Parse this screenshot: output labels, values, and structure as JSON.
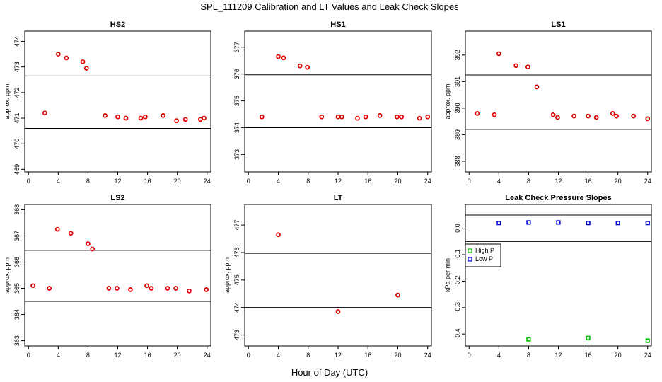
{
  "title": "SPL_111209  Calibration and LT Values and Leak Check Slopes",
  "xlabel": "Hour of Day (UTC)",
  "colors": {
    "red": "#e00000",
    "green": "#00bb00",
    "blue": "#0000dd",
    "axis": "#000000"
  },
  "chart_data": [
    {
      "id": "hs2",
      "type": "scatter",
      "title": "HS2",
      "ylabel": "approx. ppm",
      "xlim": [
        -0.5,
        24.5
      ],
      "ylim": [
        468.9,
        474.4
      ],
      "xticks": [
        "0",
        "4",
        "8",
        "12",
        "16",
        "20",
        "24"
      ],
      "yticks": [
        "469",
        "470",
        "471",
        "472",
        "473",
        "474"
      ],
      "hlines": [
        472.65,
        470.6
      ],
      "series": [
        {
          "name": "HS2",
          "color": "#e00000",
          "marker": "circle",
          "x": [
            2.2,
            4.0,
            5.1,
            7.3,
            7.8,
            10.3,
            12.0,
            13.1,
            15.1,
            15.7,
            18.1,
            19.9,
            21.1,
            23.1,
            23.6
          ],
          "y": [
            471.2,
            473.5,
            473.35,
            473.2,
            472.95,
            471.1,
            471.05,
            471.0,
            471.0,
            471.05,
            471.1,
            470.9,
            470.95,
            470.95,
            471.0
          ]
        }
      ]
    },
    {
      "id": "hs1",
      "type": "scatter",
      "title": "HS1",
      "ylabel": "",
      "xlim": [
        -0.5,
        24.5
      ],
      "ylim": [
        372.35,
        377.6
      ],
      "xticks": [
        "0",
        "4",
        "8",
        "12",
        "16",
        "20",
        "24"
      ],
      "yticks": [
        "373",
        "374",
        "375",
        "376",
        "377"
      ],
      "hlines": [
        375.97,
        374.0
      ],
      "series": [
        {
          "name": "HS1",
          "color": "#e00000",
          "marker": "circle",
          "x": [
            1.8,
            4.0,
            4.7,
            6.9,
            7.9,
            9.8,
            12.0,
            12.5,
            14.6,
            15.7,
            17.6,
            19.9,
            20.5,
            22.9,
            24.0
          ],
          "y": [
            374.4,
            376.65,
            376.6,
            376.3,
            376.25,
            374.4,
            374.4,
            374.4,
            374.35,
            374.4,
            374.45,
            374.4,
            374.4,
            374.35,
            374.4
          ]
        }
      ]
    },
    {
      "id": "ls1",
      "type": "scatter",
      "title": "LS1",
      "ylabel": "approx. ppm",
      "xlim": [
        -0.5,
        24.5
      ],
      "ylim": [
        387.6,
        392.9
      ],
      "xticks": [
        "0",
        "4",
        "8",
        "12",
        "16",
        "20",
        "24"
      ],
      "yticks": [
        "388",
        "389",
        "390",
        "391",
        "392"
      ],
      "hlines": [
        391.25,
        389.2
      ],
      "series": [
        {
          "name": "LS1",
          "color": "#e00000",
          "marker": "circle",
          "x": [
            1.1,
            3.4,
            4.0,
            6.3,
            7.9,
            9.1,
            11.3,
            11.9,
            14.1,
            16.0,
            17.1,
            19.3,
            19.8,
            22.1,
            24.0
          ],
          "y": [
            389.8,
            389.75,
            392.05,
            391.6,
            391.55,
            390.8,
            389.75,
            389.65,
            389.7,
            389.7,
            389.65,
            389.8,
            389.7,
            389.7,
            389.6
          ]
        }
      ]
    },
    {
      "id": "ls2",
      "type": "scatter",
      "title": "LS2",
      "ylabel": "approx. ppm",
      "xlim": [
        -0.5,
        24.5
      ],
      "ylim": [
        362.8,
        368.2
      ],
      "xticks": [
        "0",
        "4",
        "8",
        "12",
        "16",
        "20",
        "24"
      ],
      "yticks": [
        "363",
        "364",
        "365",
        "366",
        "367",
        "368"
      ],
      "hlines": [
        366.45,
        364.5
      ],
      "series": [
        {
          "name": "LS2",
          "color": "#e00000",
          "marker": "circle",
          "x": [
            0.6,
            2.8,
            3.9,
            5.7,
            8.0,
            8.6,
            10.8,
            11.9,
            13.7,
            15.9,
            16.5,
            18.7,
            19.8,
            21.6,
            23.9
          ],
          "y": [
            365.1,
            365.0,
            367.25,
            367.1,
            366.7,
            366.5,
            365.0,
            365.0,
            364.95,
            365.1,
            365.0,
            365.0,
            365.0,
            364.9,
            364.95
          ]
        }
      ]
    },
    {
      "id": "lt",
      "type": "scatter",
      "title": "LT",
      "ylabel": "approx. ppm",
      "xlim": [
        -0.5,
        24.5
      ],
      "ylim": [
        472.6,
        477.75
      ],
      "xticks": [
        "0",
        "4",
        "8",
        "12",
        "16",
        "20",
        "24"
      ],
      "yticks": [
        "473",
        "474",
        "475",
        "476",
        "477"
      ],
      "hlines": [
        475.97,
        474.0
      ],
      "series": [
        {
          "name": "LT",
          "color": "#e00000",
          "marker": "circle",
          "x": [
            4.0,
            12.0,
            20.0
          ],
          "y": [
            476.65,
            473.85,
            474.45
          ]
        }
      ]
    },
    {
      "id": "leak",
      "type": "scatter",
      "title": "Leak Check Pressure Slopes",
      "ylabel": "kPa per min",
      "xlim": [
        -0.5,
        24.5
      ],
      "ylim": [
        -0.445,
        0.09
      ],
      "xticks": [
        "0",
        "4",
        "8",
        "12",
        "16",
        "20",
        "24"
      ],
      "yticks": [
        "0.0",
        "-0.1",
        "-0.2",
        "-0.3",
        "-0.4"
      ],
      "yticks_values": [
        0.0,
        -0.1,
        -0.2,
        -0.3,
        -0.4
      ],
      "hlines": [
        0.05,
        -0.05
      ],
      "legend": {
        "position": "left-middle",
        "entries": [
          "High P",
          "Low P"
        ]
      },
      "series": [
        {
          "name": "High P",
          "color": "#00bb00",
          "marker": "square",
          "x": [
            8.0,
            16.0,
            24.0
          ],
          "y": [
            -0.42,
            -0.415,
            -0.425
          ]
        },
        {
          "name": "Low P",
          "color": "#0000dd",
          "marker": "square",
          "x": [
            4.0,
            8.0,
            12.0,
            16.0,
            20.0,
            24.0
          ],
          "y": [
            0.02,
            0.022,
            0.022,
            0.02,
            0.02,
            0.02
          ]
        }
      ]
    }
  ]
}
